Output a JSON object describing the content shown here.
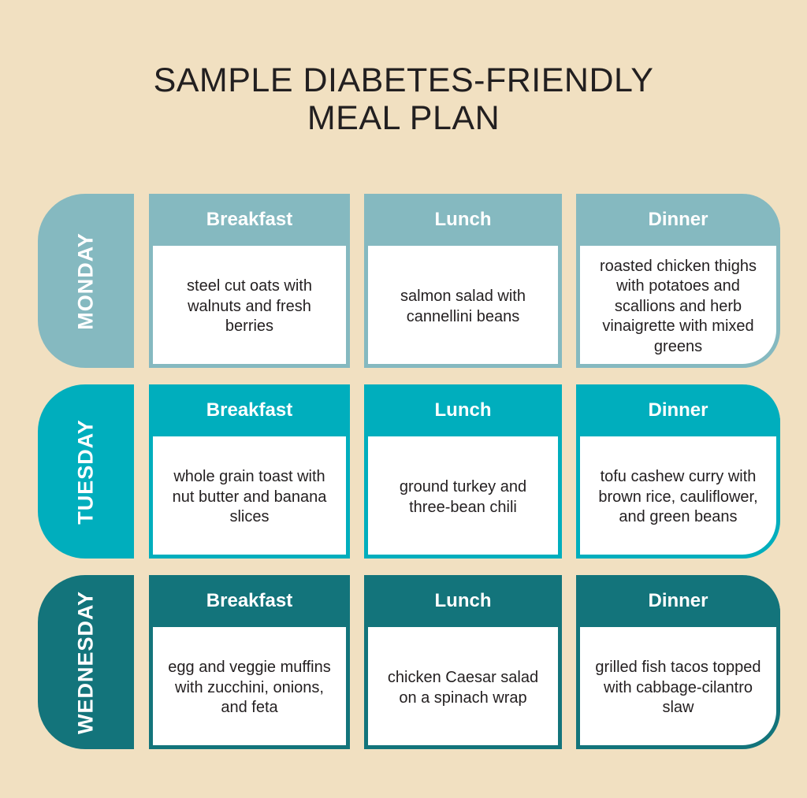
{
  "title": {
    "line1": "SAMPLE DIABETES-FRIENDLY",
    "line2": "MEAL PLAN"
  },
  "colors": {
    "background": "#f1e0c1",
    "monday": "#85b9c0",
    "tuesday": "#00aebd",
    "wednesday": "#13747b",
    "text": "#231f20"
  },
  "days": [
    {
      "name": "MONDAY",
      "meals": [
        {
          "label": "Breakfast",
          "text": "steel cut oats with walnuts and fresh berries"
        },
        {
          "label": "Lunch",
          "text": "salmon salad with cannellini beans"
        },
        {
          "label": "Dinner",
          "text": "roasted chicken thighs with potatoes and scallions and herb vinaigrette with mixed greens"
        }
      ]
    },
    {
      "name": "TUESDAY",
      "meals": [
        {
          "label": "Breakfast",
          "text": "whole grain toast with nut butter and banana slices"
        },
        {
          "label": "Lunch",
          "text": "ground turkey and three-bean chili"
        },
        {
          "label": "Dinner",
          "text": "tofu cashew curry with brown rice, cauliflower, and green beans"
        }
      ]
    },
    {
      "name": "WEDNESDAY",
      "meals": [
        {
          "label": "Breakfast",
          "text": "egg and veggie muffins with zucchini, onions, and feta"
        },
        {
          "label": "Lunch",
          "text": "chicken Caesar salad on a spinach wrap"
        },
        {
          "label": "Dinner",
          "text": "grilled fish tacos topped with cabbage-cilantro slaw"
        }
      ]
    }
  ]
}
